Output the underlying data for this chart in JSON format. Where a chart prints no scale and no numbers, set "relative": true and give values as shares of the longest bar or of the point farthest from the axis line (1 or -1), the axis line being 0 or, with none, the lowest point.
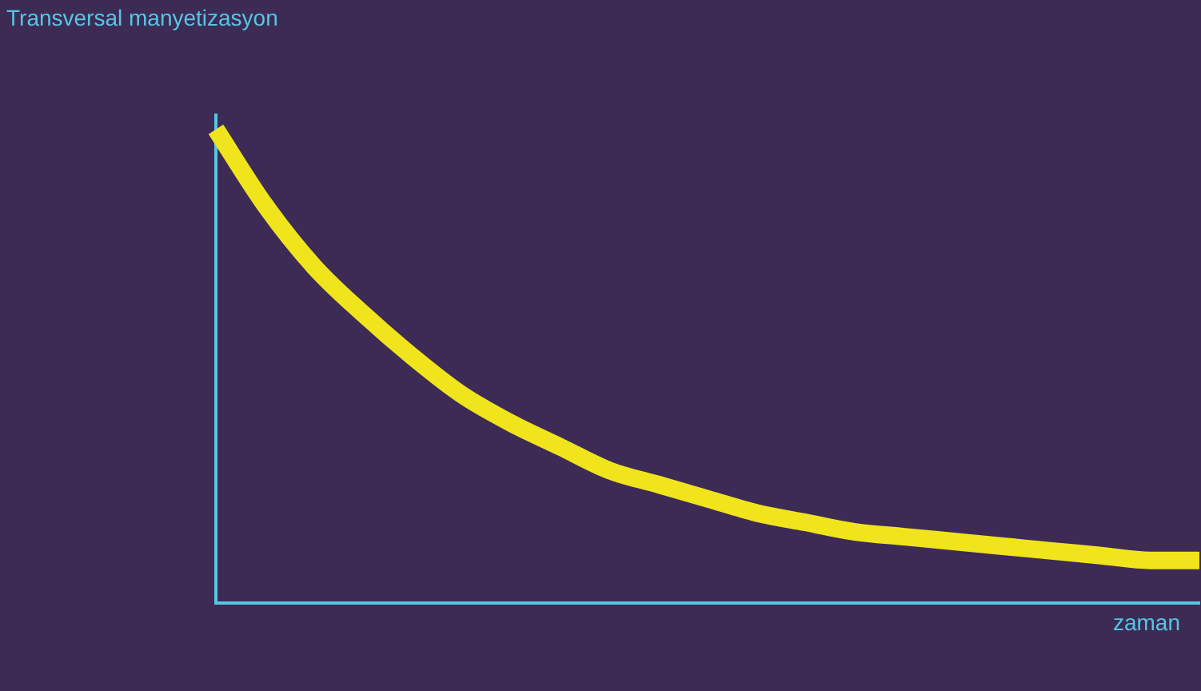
{
  "chart_data": {
    "type": "line",
    "relative": true,
    "ylabel": "Transversal manyetizasyon",
    "xlabel": "zaman",
    "categories": [
      null,
      null,
      null,
      null,
      null,
      null,
      null,
      null,
      null,
      null,
      null,
      null,
      null,
      null,
      null,
      null,
      null,
      null,
      null,
      null,
      null
    ],
    "series": [
      {
        "color": "#f0e41c",
        "values": [
          1.0,
          0.84,
          0.71,
          0.61,
          0.52,
          0.44,
          0.38,
          0.33,
          0.28,
          0.25,
          0.22,
          0.19,
          0.17,
          0.15,
          0.14,
          0.13,
          0.12,
          0.11,
          0.1,
          0.09,
          0.09
        ]
      }
    ],
    "grid": false,
    "legend": false,
    "marker": "none",
    "line_style": "solid"
  }
}
